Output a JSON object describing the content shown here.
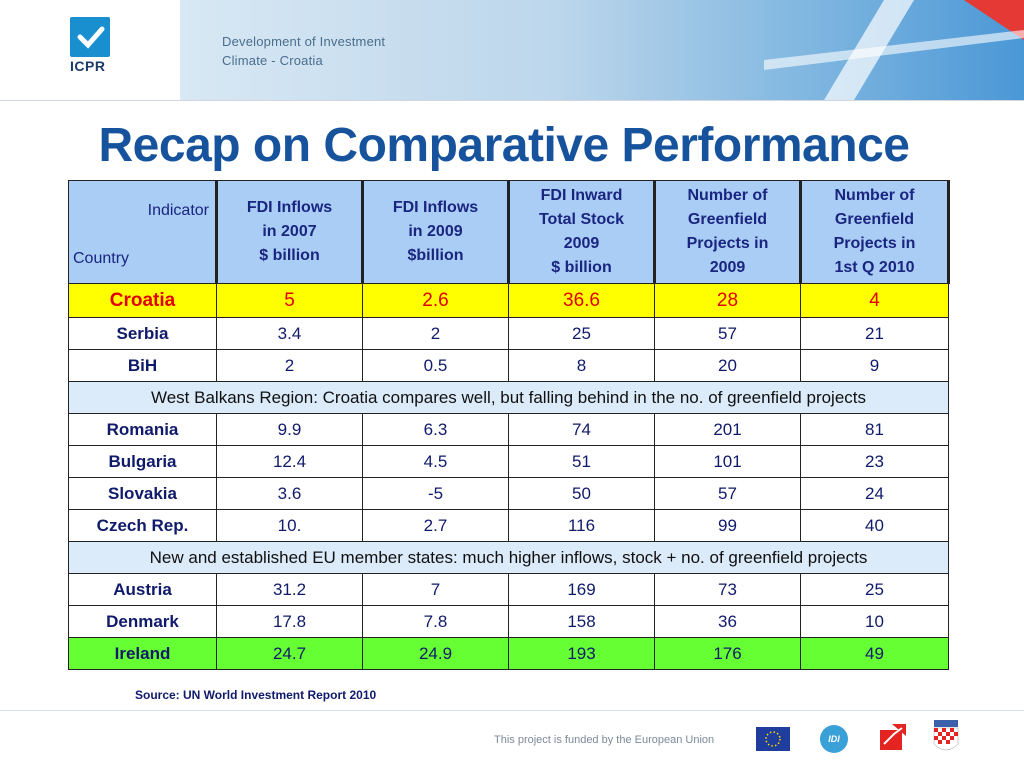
{
  "header": {
    "logo_text": "ICPR",
    "banner_line1": "Development of Investment",
    "banner_line2": "Climate - Croatia"
  },
  "title": "Recap on Comparative Performance",
  "table": {
    "corner_indicator": "Indicator",
    "corner_country": "Country",
    "columns": [
      [
        "FDI Inflows",
        "in 2007",
        "$ billion"
      ],
      [
        "FDI Inflows",
        "in 2009",
        "$billion"
      ],
      [
        "FDI Inward",
        "Total Stock",
        "2009",
        "$ billion"
      ],
      [
        "Number of",
        "Greenfield",
        "Projects in",
        "2009"
      ],
      [
        "Number of",
        "Greenfield",
        "Projects in",
        "1st Q 2010"
      ]
    ],
    "rows": [
      {
        "type": "data",
        "style": "croatia",
        "country": "Croatia",
        "values": [
          "5",
          "2.6",
          "36.6",
          "28",
          "4"
        ]
      },
      {
        "type": "data",
        "country": "Serbia",
        "values": [
          "3.4",
          "2",
          "25",
          "57",
          "21"
        ]
      },
      {
        "type": "data",
        "country": "BiH",
        "values": [
          "2",
          "0.5",
          "8",
          "20",
          "9"
        ]
      },
      {
        "type": "note",
        "text": "West Balkans Region: Croatia compares well, but falling behind in the no. of greenfield projects"
      },
      {
        "type": "data",
        "country": "Romania",
        "values": [
          "9.9",
          "6.3",
          "74",
          "201",
          "81"
        ]
      },
      {
        "type": "data",
        "country": "Bulgaria",
        "values": [
          "12.4",
          "4.5",
          "51",
          "101",
          "23"
        ]
      },
      {
        "type": "data",
        "country": "Slovakia",
        "values": [
          "3.6",
          "-5",
          "50",
          "57",
          "24"
        ]
      },
      {
        "type": "data",
        "country": "Czech Rep.",
        "values": [
          "10.",
          "2.7",
          "116",
          "99",
          "40"
        ]
      },
      {
        "type": "note",
        "text": "New and established EU member states: much higher inflows, stock + no. of greenfield projects"
      },
      {
        "type": "data",
        "country": "Austria",
        "values": [
          "31.2",
          "7",
          "169",
          "73",
          "25"
        ]
      },
      {
        "type": "data",
        "country": "Denmark",
        "values": [
          "17.8",
          "7.8",
          "158",
          "36",
          "10"
        ]
      },
      {
        "type": "data",
        "style": "ireland",
        "country": "Ireland",
        "values": [
          "24.7",
          "24.9",
          "193",
          "176",
          "49"
        ]
      }
    ]
  },
  "source": "Source: UN World Investment Report 2010",
  "footer": {
    "funded_text": "This project is funded by the European Union",
    "logo_idi": "IDI"
  },
  "colors": {
    "title": "#17539c",
    "header_fill": "#a9cdf5",
    "croatia_fill": "#ffff00",
    "ireland_fill": "#66ff33",
    "note_fill": "#dcebfa"
  }
}
